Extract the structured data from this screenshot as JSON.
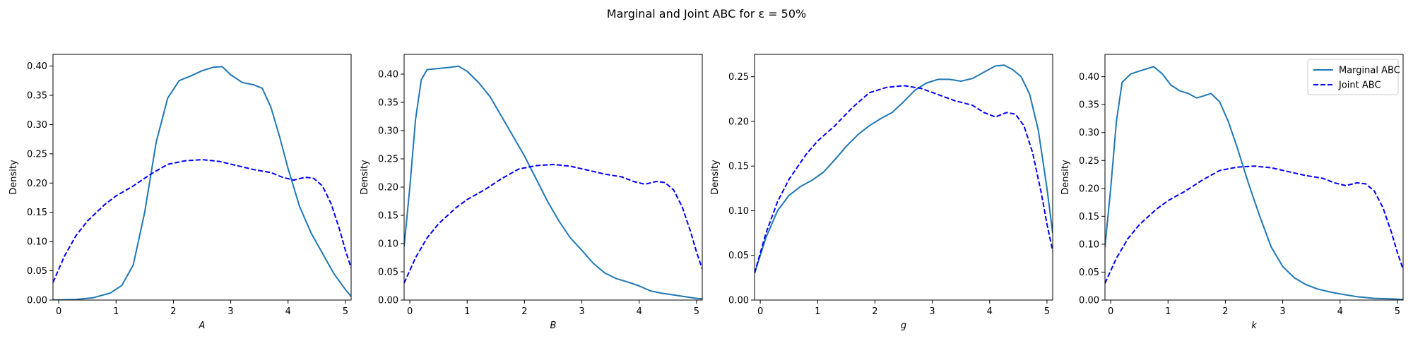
{
  "figure": {
    "title": "Marginal and Joint ABC for ε =  50%"
  },
  "colors": {
    "marginal": "#1f77b4",
    "joint": "#0000ff"
  },
  "legend": {
    "placement": "upper-right",
    "entries": [
      "Marginal ABC",
      "Joint ABC"
    ]
  },
  "chart_data": [
    {
      "type": "line",
      "xlabel": "A",
      "ylabel": "Density",
      "xlim": [
        -0.1,
        5.1
      ],
      "ylim": [
        0,
        0.42
      ],
      "xticks": [
        0,
        1,
        2,
        3,
        4,
        5
      ],
      "yticks": [
        0.0,
        0.05,
        0.1,
        0.15,
        0.2,
        0.25,
        0.3,
        0.35,
        0.4
      ],
      "series": [
        {
          "name": "Marginal ABC",
          "style": "solid",
          "x": [
            -0.1,
            0.3,
            0.6,
            0.9,
            1.1,
            1.3,
            1.5,
            1.7,
            1.9,
            2.1,
            2.3,
            2.5,
            2.7,
            2.85,
            3.0,
            3.2,
            3.4,
            3.55,
            3.7,
            3.85,
            4.0,
            4.2,
            4.4,
            4.6,
            4.8,
            5.0,
            5.1
          ],
          "y": [
            0.0,
            0.001,
            0.004,
            0.012,
            0.025,
            0.06,
            0.15,
            0.27,
            0.345,
            0.375,
            0.383,
            0.392,
            0.398,
            0.399,
            0.385,
            0.372,
            0.368,
            0.362,
            0.33,
            0.28,
            0.225,
            0.16,
            0.115,
            0.08,
            0.045,
            0.018,
            0.006
          ]
        },
        {
          "name": "Joint ABC",
          "style": "dashed",
          "x": [
            -0.1,
            0.1,
            0.3,
            0.5,
            0.8,
            1.0,
            1.3,
            1.6,
            1.9,
            2.2,
            2.5,
            2.8,
            3.1,
            3.4,
            3.7,
            3.9,
            4.1,
            4.3,
            4.45,
            4.6,
            4.75,
            4.9,
            5.0,
            5.1
          ],
          "y": [
            0.03,
            0.075,
            0.11,
            0.135,
            0.163,
            0.178,
            0.195,
            0.215,
            0.232,
            0.238,
            0.24,
            0.237,
            0.23,
            0.223,
            0.218,
            0.21,
            0.205,
            0.21,
            0.208,
            0.195,
            0.165,
            0.12,
            0.085,
            0.055
          ]
        }
      ]
    },
    {
      "type": "line",
      "xlabel": "B",
      "ylabel": "Density",
      "xlim": [
        -0.1,
        5.1
      ],
      "ylim": [
        0,
        0.435
      ],
      "xticks": [
        0,
        1,
        2,
        3,
        4,
        5
      ],
      "yticks": [
        0.0,
        0.05,
        0.1,
        0.15,
        0.2,
        0.25,
        0.3,
        0.35,
        0.4
      ],
      "series": [
        {
          "name": "Marginal ABC",
          "style": "solid",
          "x": [
            -0.1,
            0.0,
            0.1,
            0.2,
            0.3,
            0.5,
            0.7,
            0.85,
            1.0,
            1.2,
            1.4,
            1.6,
            1.8,
            2.0,
            2.2,
            2.4,
            2.6,
            2.8,
            3.0,
            3.2,
            3.4,
            3.6,
            3.8,
            4.0,
            4.2,
            4.4,
            4.6,
            4.8,
            5.0,
            5.1
          ],
          "y": [
            0.095,
            0.2,
            0.32,
            0.39,
            0.408,
            0.41,
            0.412,
            0.414,
            0.405,
            0.385,
            0.36,
            0.325,
            0.29,
            0.255,
            0.215,
            0.175,
            0.14,
            0.11,
            0.088,
            0.065,
            0.048,
            0.038,
            0.032,
            0.025,
            0.016,
            0.012,
            0.009,
            0.006,
            0.003,
            0.002
          ]
        },
        {
          "name": "Joint ABC",
          "style": "dashed",
          "x": [
            -0.1,
            0.1,
            0.3,
            0.5,
            0.8,
            1.0,
            1.3,
            1.6,
            1.9,
            2.2,
            2.5,
            2.8,
            3.1,
            3.4,
            3.7,
            3.9,
            4.1,
            4.3,
            4.45,
            4.6,
            4.75,
            4.9,
            5.0,
            5.1
          ],
          "y": [
            0.03,
            0.075,
            0.11,
            0.135,
            0.163,
            0.178,
            0.195,
            0.215,
            0.232,
            0.238,
            0.24,
            0.237,
            0.23,
            0.223,
            0.218,
            0.21,
            0.205,
            0.21,
            0.208,
            0.195,
            0.165,
            0.12,
            0.085,
            0.055
          ]
        }
      ]
    },
    {
      "type": "line",
      "xlabel": "g",
      "ylabel": "Density",
      "xlim": [
        -0.1,
        5.1
      ],
      "ylim": [
        0,
        0.275
      ],
      "xticks": [
        0,
        1,
        2,
        3,
        4,
        5
      ],
      "yticks": [
        0.0,
        0.05,
        0.1,
        0.15,
        0.2,
        0.25
      ],
      "series": [
        {
          "name": "Marginal ABC",
          "style": "solid",
          "x": [
            -0.1,
            0.1,
            0.3,
            0.5,
            0.7,
            0.9,
            1.1,
            1.3,
            1.5,
            1.7,
            1.9,
            2.1,
            2.3,
            2.5,
            2.7,
            2.9,
            3.1,
            3.3,
            3.5,
            3.7,
            3.9,
            4.1,
            4.25,
            4.4,
            4.55,
            4.7,
            4.85,
            5.0,
            5.1
          ],
          "y": [
            0.03,
            0.07,
            0.1,
            0.117,
            0.127,
            0.134,
            0.143,
            0.157,
            0.172,
            0.185,
            0.195,
            0.203,
            0.21,
            0.222,
            0.235,
            0.243,
            0.247,
            0.247,
            0.245,
            0.248,
            0.255,
            0.262,
            0.263,
            0.258,
            0.25,
            0.23,
            0.19,
            0.125,
            0.075
          ]
        },
        {
          "name": "Joint ABC",
          "style": "dashed",
          "x": [
            -0.1,
            0.1,
            0.3,
            0.5,
            0.8,
            1.0,
            1.3,
            1.6,
            1.9,
            2.2,
            2.5,
            2.8,
            3.1,
            3.4,
            3.7,
            3.9,
            4.1,
            4.3,
            4.45,
            4.6,
            4.75,
            4.9,
            5.0,
            5.1
          ],
          "y": [
            0.03,
            0.075,
            0.11,
            0.135,
            0.163,
            0.178,
            0.195,
            0.215,
            0.232,
            0.238,
            0.24,
            0.237,
            0.23,
            0.223,
            0.218,
            0.21,
            0.205,
            0.21,
            0.208,
            0.195,
            0.165,
            0.12,
            0.085,
            0.055
          ]
        }
      ]
    },
    {
      "type": "line",
      "xlabel": "k",
      "ylabel": "Density",
      "xlim": [
        -0.1,
        5.1
      ],
      "ylim": [
        0,
        0.44
      ],
      "xticks": [
        0,
        1,
        2,
        3,
        4,
        5
      ],
      "yticks": [
        0.0,
        0.05,
        0.1,
        0.15,
        0.2,
        0.25,
        0.3,
        0.35,
        0.4
      ],
      "series": [
        {
          "name": "Marginal ABC",
          "style": "solid",
          "x": [
            -0.1,
            0.0,
            0.1,
            0.2,
            0.35,
            0.5,
            0.65,
            0.75,
            0.9,
            1.05,
            1.2,
            1.35,
            1.5,
            1.6,
            1.75,
            1.9,
            2.05,
            2.2,
            2.4,
            2.6,
            2.8,
            3.0,
            3.2,
            3.4,
            3.6,
            3.8,
            4.0,
            4.3,
            4.6,
            4.9,
            5.1
          ],
          "y": [
            0.095,
            0.2,
            0.32,
            0.39,
            0.405,
            0.41,
            0.415,
            0.418,
            0.405,
            0.385,
            0.375,
            0.37,
            0.362,
            0.365,
            0.37,
            0.355,
            0.32,
            0.275,
            0.21,
            0.15,
            0.095,
            0.06,
            0.04,
            0.028,
            0.02,
            0.015,
            0.011,
            0.006,
            0.003,
            0.002,
            0.001
          ]
        },
        {
          "name": "Joint ABC",
          "style": "dashed",
          "x": [
            -0.1,
            0.1,
            0.3,
            0.5,
            0.8,
            1.0,
            1.3,
            1.6,
            1.9,
            2.2,
            2.5,
            2.8,
            3.1,
            3.4,
            3.7,
            3.9,
            4.1,
            4.3,
            4.45,
            4.6,
            4.75,
            4.9,
            5.0,
            5.1
          ],
          "y": [
            0.03,
            0.075,
            0.11,
            0.135,
            0.163,
            0.178,
            0.195,
            0.215,
            0.232,
            0.238,
            0.24,
            0.237,
            0.23,
            0.223,
            0.218,
            0.21,
            0.205,
            0.21,
            0.208,
            0.195,
            0.165,
            0.12,
            0.085,
            0.055
          ]
        }
      ]
    }
  ]
}
